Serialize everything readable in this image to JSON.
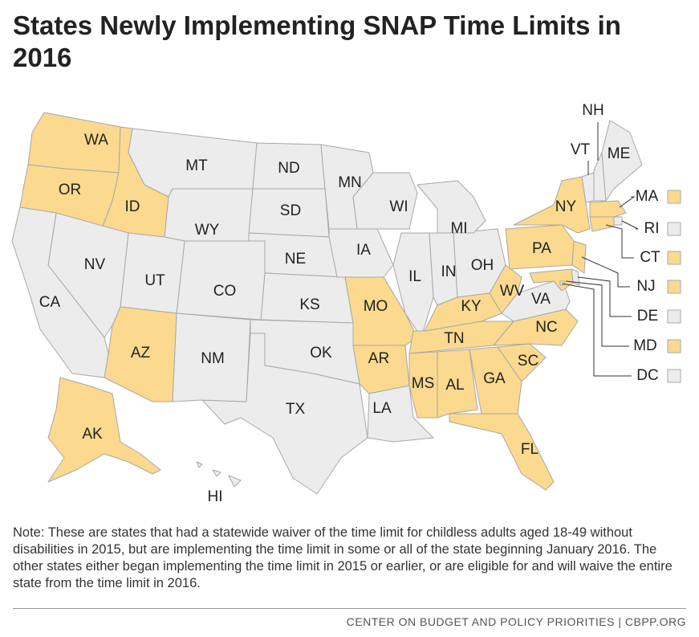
{
  "title": "States Newly Implementing SNAP Time Limits in 2016",
  "highlight_color": "#fbd98e",
  "base_color": "#ececec",
  "states": [
    {
      "label": "WA",
      "highlighted": true
    },
    {
      "label": "OR",
      "highlighted": true
    },
    {
      "label": "ID",
      "highlighted": true
    },
    {
      "label": "MT",
      "highlighted": false
    },
    {
      "label": "WY",
      "highlighted": false
    },
    {
      "label": "ND",
      "highlighted": false
    },
    {
      "label": "SD",
      "highlighted": false
    },
    {
      "label": "NE",
      "highlighted": false
    },
    {
      "label": "KS",
      "highlighted": false
    },
    {
      "label": "OK",
      "highlighted": false
    },
    {
      "label": "TX",
      "highlighted": false
    },
    {
      "label": "NM",
      "highlighted": false
    },
    {
      "label": "CO",
      "highlighted": false
    },
    {
      "label": "UT",
      "highlighted": false
    },
    {
      "label": "AZ",
      "highlighted": true
    },
    {
      "label": "NV",
      "highlighted": false
    },
    {
      "label": "CA",
      "highlighted": false
    },
    {
      "label": "MN",
      "highlighted": false
    },
    {
      "label": "IA",
      "highlighted": false
    },
    {
      "label": "MO",
      "highlighted": true
    },
    {
      "label": "AR",
      "highlighted": true
    },
    {
      "label": "LA",
      "highlighted": false
    },
    {
      "label": "WI",
      "highlighted": false
    },
    {
      "label": "IL",
      "highlighted": false
    },
    {
      "label": "IN",
      "highlighted": false
    },
    {
      "label": "OH",
      "highlighted": false
    },
    {
      "label": "MI",
      "highlighted": false
    },
    {
      "label": "KY",
      "highlighted": true
    },
    {
      "label": "TN",
      "highlighted": true
    },
    {
      "label": "MS",
      "highlighted": true
    },
    {
      "label": "AL",
      "highlighted": true
    },
    {
      "label": "GA",
      "highlighted": true
    },
    {
      "label": "FL",
      "highlighted": true
    },
    {
      "label": "SC",
      "highlighted": true
    },
    {
      "label": "NC",
      "highlighted": true
    },
    {
      "label": "VA",
      "highlighted": false
    },
    {
      "label": "WV",
      "highlighted": true
    },
    {
      "label": "PA",
      "highlighted": true
    },
    {
      "label": "NY",
      "highlighted": true
    },
    {
      "label": "VT",
      "highlighted": false
    },
    {
      "label": "NH",
      "highlighted": false
    },
    {
      "label": "ME",
      "highlighted": false
    },
    {
      "label": "MA",
      "highlighted": true
    },
    {
      "label": "RI",
      "highlighted": false
    },
    {
      "label": "CT",
      "highlighted": true
    },
    {
      "label": "NJ",
      "highlighted": true
    },
    {
      "label": "DE",
      "highlighted": false
    },
    {
      "label": "MD",
      "highlighted": true
    },
    {
      "label": "DC",
      "highlighted": false
    },
    {
      "label": "AK",
      "highlighted": true
    },
    {
      "label": "HI",
      "highlighted": false
    }
  ],
  "note": "Note: These are states that had a statewide waiver of the time limit for childless adults aged 18-49 without disabilities in 2015, but are implementing the time limit in some or all of the state beginning January 2016. The other states either began implementing the time limit in 2015 or earlier, or are eligible for and will waive the entire state from the time limit in 2016.",
  "source": "CENTER ON BUDGET AND POLICY PRIORITIES | CBPP.ORG"
}
